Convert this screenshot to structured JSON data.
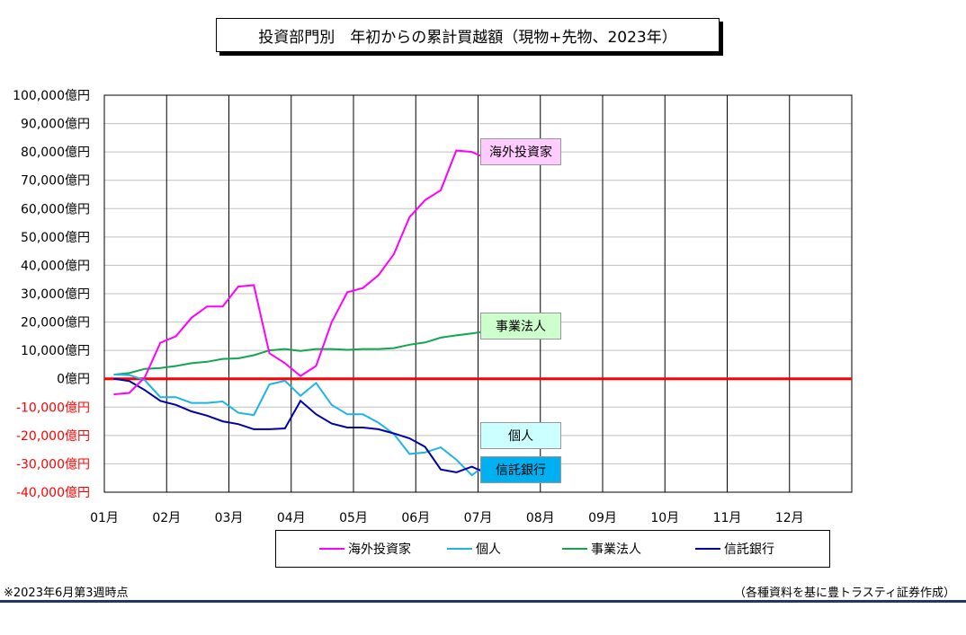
{
  "title": "投資部門別　年初からの累計買越額（現物+先物、2023年）",
  "footnote": "※2023年6月第3週時点",
  "source": "（各種資料を基に豊トラスティ証券作成）",
  "chart_data": {
    "type": "line",
    "categories": [
      "01月",
      "02月",
      "03月",
      "04月",
      "05月",
      "06月",
      "07月",
      "08月",
      "09月",
      "10月",
      "11月",
      "12月"
    ],
    "y_ticks": [
      "100,000億円",
      "90,000億円",
      "80,000億円",
      "70,000億円",
      "60,000億円",
      "50,000億円",
      "40,000億円",
      "30,000億円",
      "20,000億円",
      "10,000億円",
      "0億円",
      "-10,000億円",
      "-20,000億円",
      "-30,000億円",
      "-40,000億円"
    ],
    "ylim": [
      -40000,
      100000
    ],
    "unit": "億円",
    "grid": true,
    "zero_line_color": "#ff0000",
    "negative_tick_color": "#ff0000",
    "series": [
      {
        "name": "海外投資家",
        "color": "#ff00ff",
        "label_bg": "#ffccff",
        "x": [
          0.15,
          0.4,
          0.65,
          0.9,
          1.15,
          1.4,
          1.65,
          1.9,
          2.15,
          2.4,
          2.65,
          2.9,
          3.15,
          3.4,
          3.65,
          3.9,
          4.15,
          4.4,
          4.65,
          4.9,
          5.15,
          5.4,
          5.65,
          5.9
        ],
        "values": [
          -5500,
          -5000,
          500,
          12700,
          15000,
          21500,
          25500,
          25500,
          32500,
          33000,
          9000,
          5500,
          1000,
          4500,
          20000,
          30500,
          32000,
          36500,
          44000,
          57000,
          63000,
          66500,
          80500,
          80000
        ]
      },
      {
        "name": "個人",
        "color": "#1fb4e6",
        "label_bg": "#ccffff",
        "x": [
          0.15,
          0.4,
          0.65,
          0.9,
          1.15,
          1.4,
          1.65,
          1.9,
          2.15,
          2.4,
          2.65,
          2.9,
          3.15,
          3.4,
          3.65,
          3.9,
          4.15,
          4.4,
          4.65,
          4.9,
          5.15,
          5.4,
          5.65,
          5.9
        ],
        "values": [
          1500,
          1300,
          -500,
          -6500,
          -6500,
          -8500,
          -8500,
          -8000,
          -12000,
          -12800,
          -2000,
          -700,
          -6000,
          -1500,
          -9200,
          -12500,
          -12500,
          -15500,
          -19500,
          -26500,
          -26000,
          -24200,
          -28500,
          -34000
        ]
      },
      {
        "name": "事業法人",
        "color": "#12a650",
        "label_bg": "#ccffcc",
        "x": [
          0.15,
          0.4,
          0.65,
          0.9,
          1.15,
          1.4,
          1.65,
          1.9,
          2.15,
          2.4,
          2.65,
          2.9,
          3.15,
          3.4,
          3.65,
          3.9,
          4.15,
          4.4,
          4.65,
          4.9,
          5.15,
          5.4,
          5.65,
          5.9
        ],
        "values": [
          1500,
          2000,
          3500,
          3800,
          4500,
          5500,
          6000,
          7000,
          7200,
          8300,
          10000,
          10500,
          9800,
          10500,
          10500,
          10200,
          10500,
          10500,
          10800,
          12000,
          12800,
          14500,
          15300,
          16000
        ]
      },
      {
        "name": "信託銀行",
        "color": "#0000aa",
        "label_bg": "#00b0f0",
        "x": [
          0.15,
          0.4,
          0.65,
          0.9,
          1.15,
          1.4,
          1.65,
          1.9,
          2.15,
          2.4,
          2.65,
          2.9,
          3.15,
          3.4,
          3.65,
          3.9,
          4.15,
          4.4,
          4.65,
          4.9,
          5.15,
          5.4,
          5.65,
          5.9
        ],
        "values": [
          0,
          -800,
          -4000,
          -7800,
          -9200,
          -11500,
          -13000,
          -15000,
          -16000,
          -17800,
          -17800,
          -17500,
          -7800,
          -12500,
          -15800,
          -17200,
          -17200,
          -17800,
          -19300,
          -21000,
          -24000,
          -32000,
          -33000,
          -31000
        ]
      }
    ],
    "series_tail": {
      "海外投資家": 77500,
      "個人": -30000,
      "事業法人": 16800,
      "信託銀行": -33500
    }
  }
}
